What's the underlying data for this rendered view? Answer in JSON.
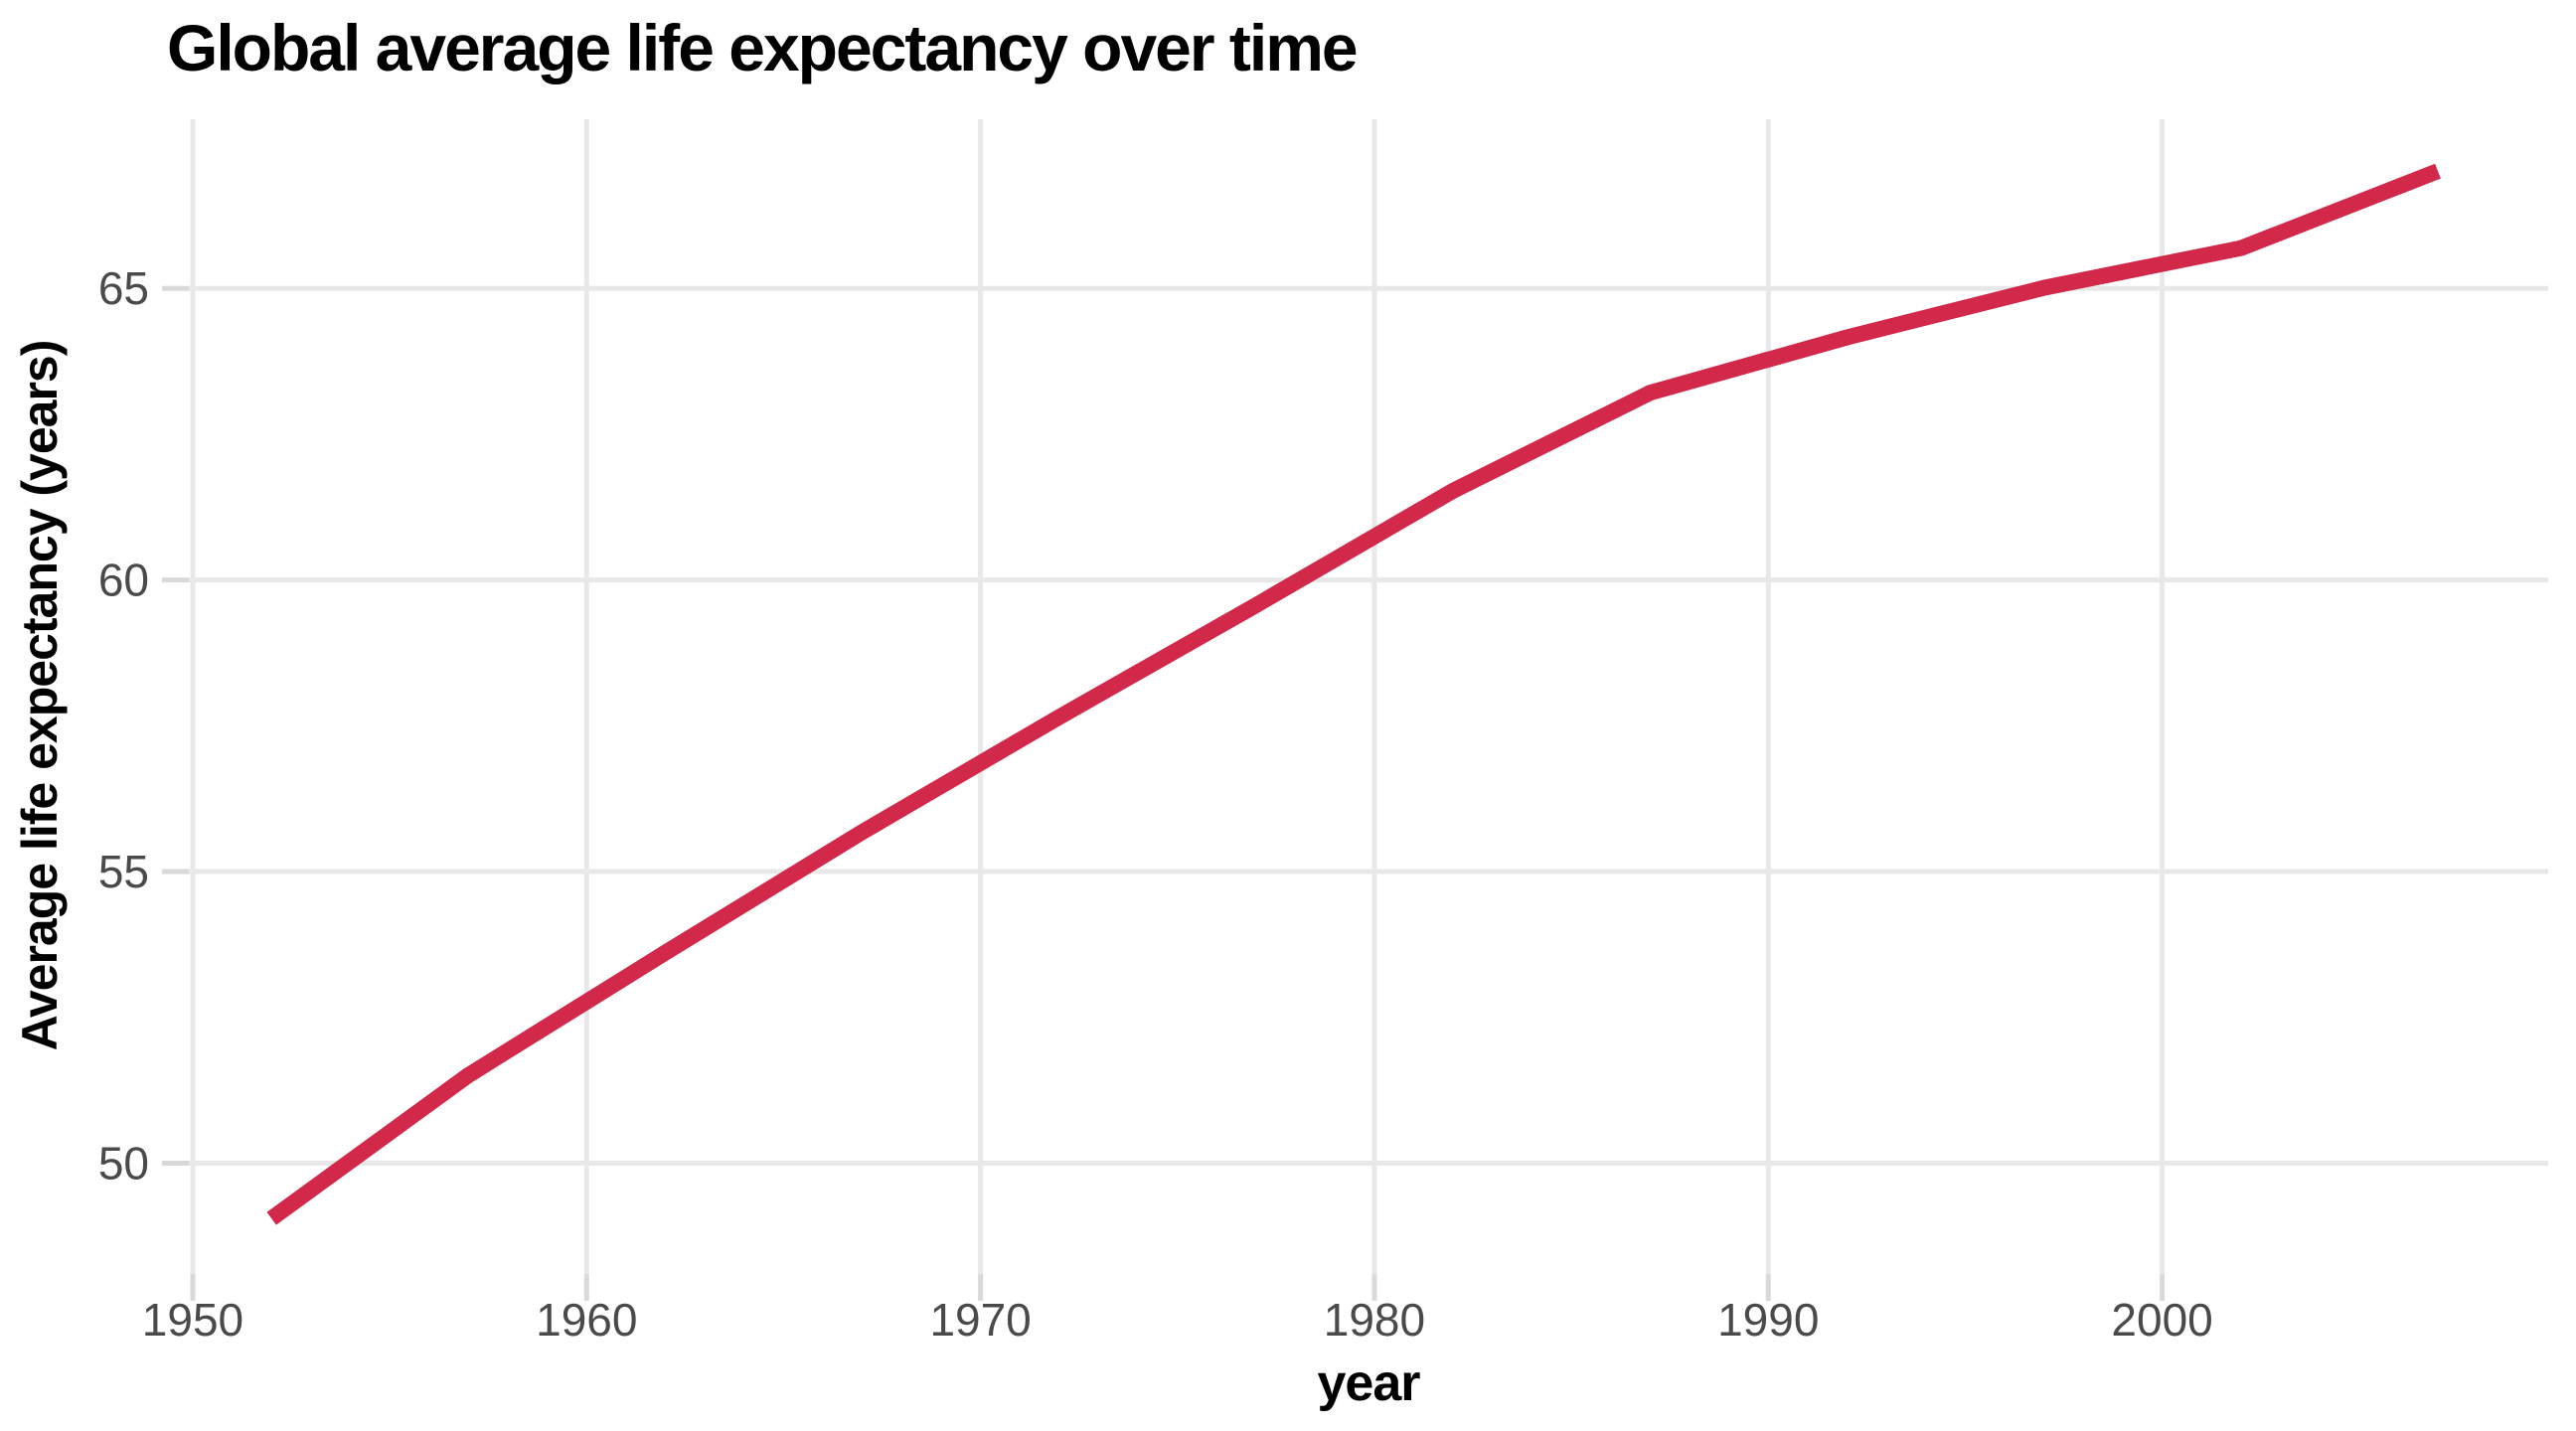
{
  "chart_data": {
    "type": "line",
    "title": "Global average life expectancy over time",
    "xlabel": "year",
    "ylabel": "Average life expectancy (years)",
    "series": [
      {
        "name": "global average life expectancy",
        "x": [
          1952,
          1957,
          1962,
          1967,
          1972,
          1977,
          1982,
          1987,
          1992,
          1997,
          2002,
          2007
        ],
        "y": [
          49.05,
          51.51,
          53.61,
          55.68,
          57.65,
          59.57,
          61.53,
          63.21,
          64.16,
          65.01,
          65.69,
          67.01
        ]
      }
    ],
    "xlim": [
      1949.9,
      2009.8
    ],
    "ylim": [
      48.1,
      67.9
    ],
    "x_ticks": [
      "1950",
      "1960",
      "1970",
      "1980",
      "1990",
      "2000"
    ],
    "x_tick_values": [
      1950,
      1960,
      1970,
      1980,
      1990,
      2000
    ],
    "y_ticks": [
      "50",
      "55",
      "60",
      "65"
    ],
    "y_tick_values": [
      50,
      55,
      60,
      65
    ],
    "grid": true,
    "legend": false,
    "colors": {
      "line": "#d2294b",
      "gridline": "#e8e8e8",
      "tick_mark": "#d9d9d9",
      "tick_label": "#4a4a4a",
      "text": "#000000",
      "background": "#ffffff"
    }
  }
}
